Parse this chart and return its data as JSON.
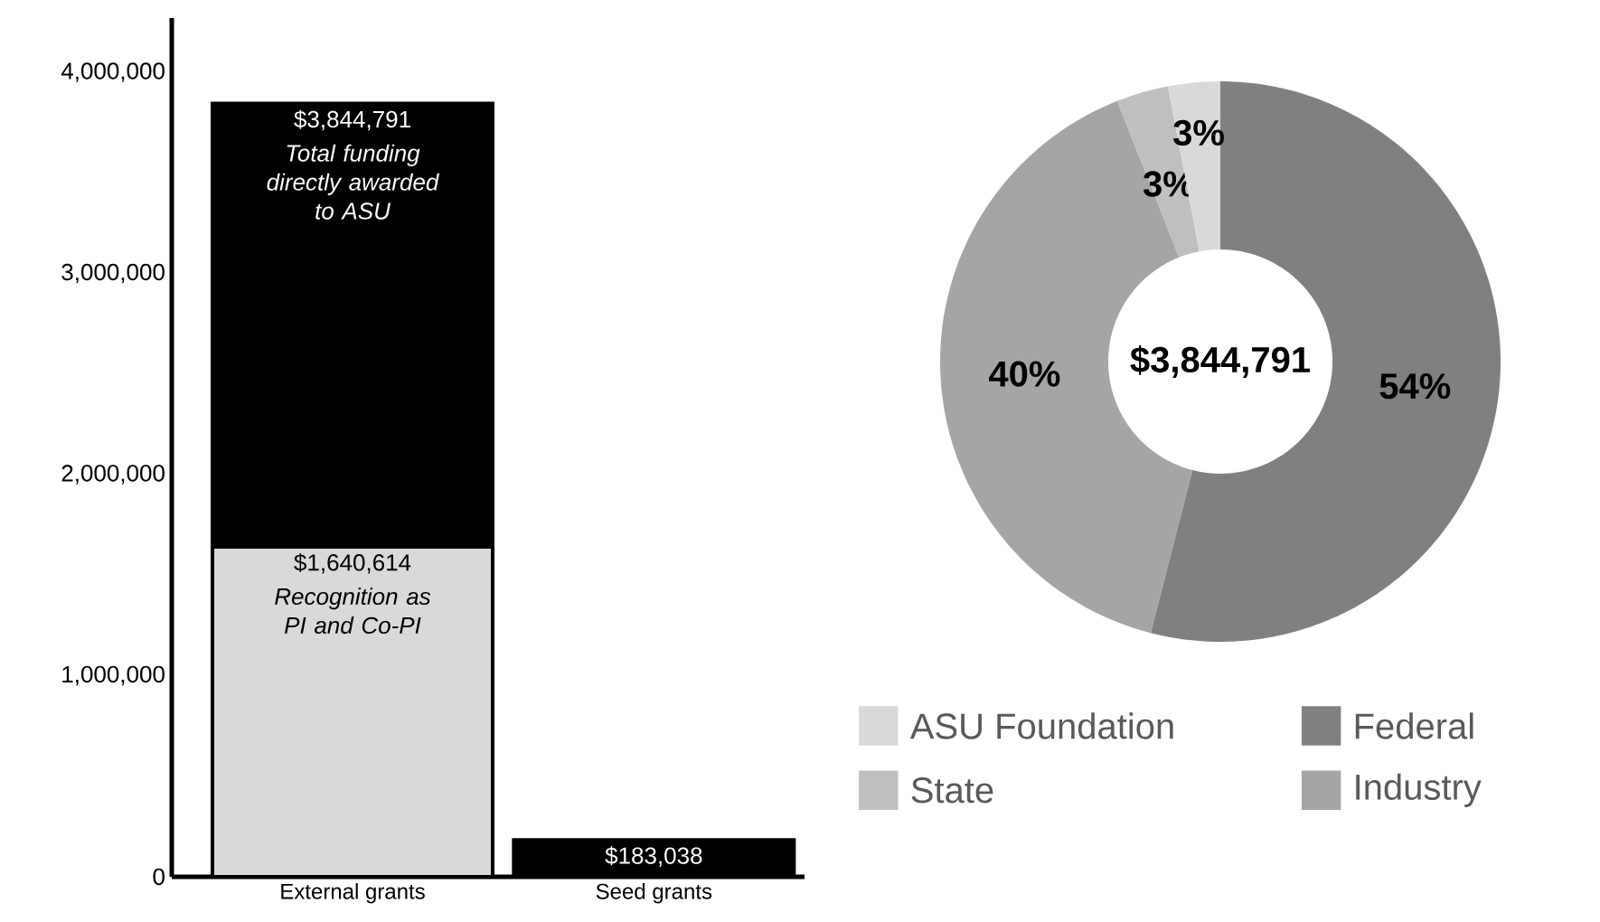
{
  "chart_data": [
    {
      "type": "bar",
      "categories": [
        "External grants",
        "Seed grants"
      ],
      "stacked": true,
      "totals": [
        "$3,844,791",
        "$183,038"
      ],
      "series": [
        {
          "color": "#d9d9d9",
          "values": [
            1640614,
            null
          ],
          "value_labels": [
            "$1,640,614",
            null
          ]
        },
        {
          "color": "#000000",
          "values": [
            2204177,
            183038
          ]
        }
      ],
      "ylim": [
        0,
        4270000
      ],
      "yticks": [
        0,
        {
          "value": 1000000,
          "label": "1,000,000"
        },
        {
          "value": 2000000,
          "label": "2,000,000"
        },
        {
          "value": 3000000,
          "label": "3,000,000"
        },
        {
          "value": 4000000,
          "label": "4,000,000"
        }
      ],
      "annotations": [
        "Total funding directly awarded to ASU",
        "Recognition as PI and Co-PI"
      ]
    },
    {
      "type": "donut",
      "categories": [
        "Federal",
        "Industry",
        "State",
        "ASU Foundation"
      ],
      "values": [
        54,
        40,
        3,
        3
      ],
      "colors": [
        "#808080",
        "#a5a5a5",
        "#bfbfbf",
        "#d9d9d9"
      ],
      "value_labels": [
        "54%",
        "40%",
        "3%",
        "3%"
      ],
      "legend": "bottom",
      "annotations": [
        "$3,844,791"
      ]
    }
  ]
}
